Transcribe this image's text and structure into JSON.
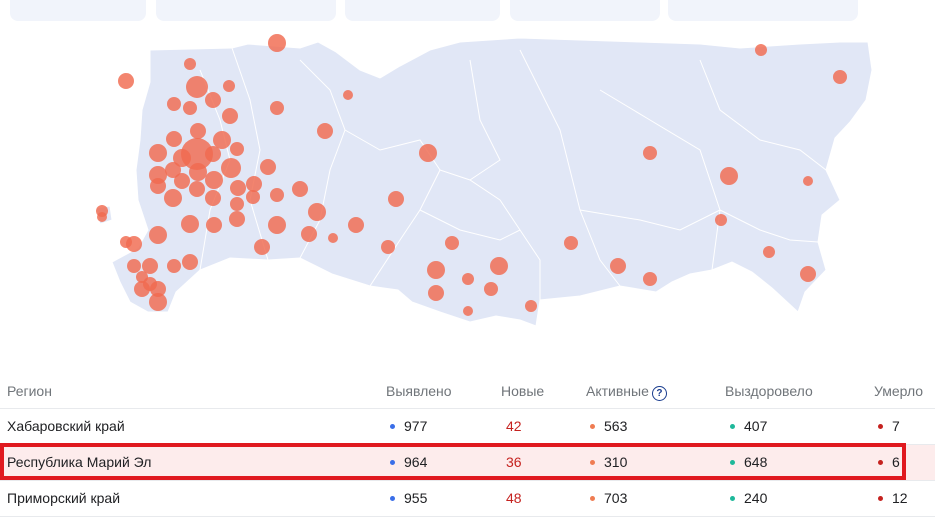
{
  "colors": {
    "land": "#e1e7f6",
    "border": "#ffffff",
    "bubble": "#f06a4f",
    "detected_dot": "#3a6ee8",
    "new_text": "#c5221f",
    "active_dot": "#ef7c52",
    "recovered_dot": "#1eb89a",
    "deaths_dot": "#c5221f",
    "highlight_border": "#e0191f",
    "highlight_bg": "#fdecec"
  },
  "table": {
    "headers": {
      "region": "Регион",
      "detected": "Выявлено",
      "new": "Новые",
      "active": "Активные",
      "recovered": "Выздоровело",
      "deaths": "Умерло"
    },
    "help_icon": "?",
    "rows": [
      {
        "region": "Хабаровский край",
        "detected": "977",
        "new": "42",
        "active": "563",
        "recovered": "407",
        "deaths": "7",
        "highlighted": false
      },
      {
        "region": "Республика Марий Эл",
        "detected": "964",
        "new": "36",
        "active": "310",
        "recovered": "648",
        "deaths": "6",
        "highlighted": true
      },
      {
        "region": "Приморский край",
        "detected": "955",
        "new": "48",
        "active": "703",
        "recovered": "240",
        "deaths": "12",
        "highlighted": false
      }
    ]
  }
}
